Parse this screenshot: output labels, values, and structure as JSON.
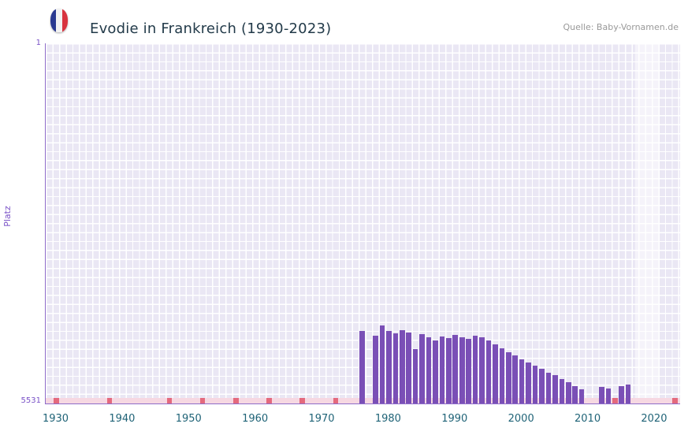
{
  "header": {
    "title": "Evodie in Frankreich (1930-2023)",
    "source": "Quelle: Baby-Vornamen.de"
  },
  "chart_data": {
    "type": "bar",
    "title": "Evodie in Frankreich (1930-2023)",
    "xlabel": "",
    "ylabel": "Platz",
    "y_axis": {
      "top_label": "1",
      "bottom_label": "5531",
      "min": 1,
      "max": 5531,
      "inverted": true
    },
    "x_axis": {
      "tick_labels": [
        "1930",
        "1940",
        "1950",
        "1960",
        "1970",
        "1980",
        "1990",
        "2000",
        "2010",
        "2020"
      ],
      "domain": [
        1928.4,
        2023.8
      ]
    },
    "series": [
      {
        "name": "rank",
        "points": [
          {
            "year": 1976,
            "rank": 4420
          },
          {
            "year": 1978,
            "rank": 4490
          },
          {
            "year": 1979,
            "rank": 4330
          },
          {
            "year": 1980,
            "rank": 4420
          },
          {
            "year": 1981,
            "rank": 4450
          },
          {
            "year": 1982,
            "rank": 4400
          },
          {
            "year": 1983,
            "rank": 4440
          },
          {
            "year": 1984,
            "rank": 4690
          },
          {
            "year": 1985,
            "rank": 4470
          },
          {
            "year": 1986,
            "rank": 4520
          },
          {
            "year": 1987,
            "rank": 4560
          },
          {
            "year": 1988,
            "rank": 4500
          },
          {
            "year": 1989,
            "rank": 4530
          },
          {
            "year": 1990,
            "rank": 4480
          },
          {
            "year": 1991,
            "rank": 4510
          },
          {
            "year": 1992,
            "rank": 4540
          },
          {
            "year": 1993,
            "rank": 4490
          },
          {
            "year": 1994,
            "rank": 4520
          },
          {
            "year": 1995,
            "rank": 4560
          },
          {
            "year": 1996,
            "rank": 4620
          },
          {
            "year": 1997,
            "rank": 4680
          },
          {
            "year": 1998,
            "rank": 4740
          },
          {
            "year": 1999,
            "rank": 4790
          },
          {
            "year": 2000,
            "rank": 4850
          },
          {
            "year": 2001,
            "rank": 4900
          },
          {
            "year": 2002,
            "rank": 4950
          },
          {
            "year": 2003,
            "rank": 5000
          },
          {
            "year": 2004,
            "rank": 5060
          },
          {
            "year": 2005,
            "rank": 5100
          },
          {
            "year": 2006,
            "rank": 5160
          },
          {
            "year": 2007,
            "rank": 5200
          },
          {
            "year": 2008,
            "rank": 5260
          },
          {
            "year": 2009,
            "rank": 5310
          },
          {
            "year": 2012,
            "rank": 5280
          },
          {
            "year": 2013,
            "rank": 5300
          },
          {
            "year": 2015,
            "rank": 5270
          },
          {
            "year": 2016,
            "rank": 5240
          }
        ]
      }
    ],
    "marker_years": [
      1930,
      1938,
      1947,
      1952,
      1957,
      1962,
      1967,
      1972,
      2014,
      2023
    ],
    "highlight_band": {
      "from": 2017.0,
      "to": 2020.6
    },
    "grid": true,
    "legend": false,
    "colors": {
      "bar": "#7a4fb6",
      "axis_line": "#8e6cc9",
      "plot_background": "#eae7f4",
      "grid_line": "#ffffff",
      "unranked_band": "#f6d8e2",
      "marker": "#e4697d",
      "highlight": "rgba(255,255,255,0.5)",
      "title_text": "#223a49",
      "x_tick_text": "#1f6377",
      "y_tick_text": "#7a52c7",
      "source_text": "#999999",
      "flag_blue": "#2a3990",
      "flag_white": "#f2f2f2",
      "flag_red": "#d8333f"
    }
  }
}
